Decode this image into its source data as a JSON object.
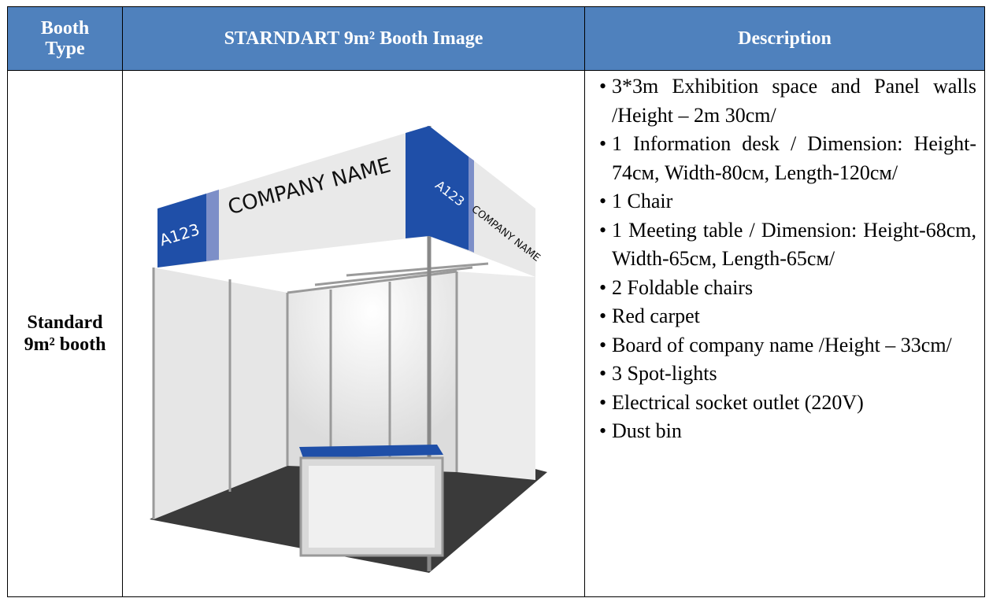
{
  "table": {
    "headers": [
      "Booth Type",
      "STARNDART 9m² Booth Image",
      "Description"
    ],
    "rows": [
      [
        "Standard 9m² booth"
      ]
    ]
  },
  "image": {
    "panel_code": "A123",
    "company_name": "COMPANY NAME"
  },
  "description": {
    "items": [
      "3*3m Exhibition space and Panel walls /Height – 2m 30cm/",
      "1 Information desk / Dimension: Height-74см, Width-80см, Length-120см/",
      "1 Chair",
      "1 Meeting table / Dimension: Height-68cm, Width-65см, Length-65см/",
      "2 Foldable chairs",
      "Red carpet",
      "Board of company name /Height – 33cm/",
      "3 Spot-lights",
      "Electrical socket outlet (220V)",
      "Dust bin"
    ]
  }
}
